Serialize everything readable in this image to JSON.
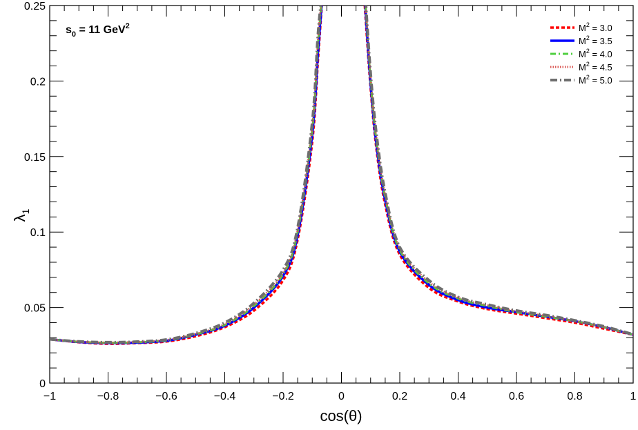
{
  "chart_data": {
    "type": "line",
    "xlabel": "cos(θ)",
    "ylabel_main": "λ",
    "ylabel_sub": "1",
    "xlim": [
      -1,
      1
    ],
    "ylim": [
      0,
      0.25
    ],
    "x_ticks": [
      -1,
      -0.8,
      -0.6,
      -0.4,
      -0.2,
      0,
      0.2,
      0.4,
      0.6,
      0.8,
      1
    ],
    "x_tick_labels": [
      "−1",
      "−0.8",
      "−0.6",
      "−0.4",
      "−0.2",
      "0",
      "0.2",
      "0.4",
      "0.6",
      "0.8",
      "1"
    ],
    "y_ticks": [
      0,
      0.05,
      0.1,
      0.15,
      0.2,
      0.25
    ],
    "y_tick_labels": [
      "0",
      "0.05",
      "0.1",
      "0.15",
      "0.2",
      "0.25"
    ],
    "annotation": {
      "main": "s",
      "sub": "0",
      "text": " = 11 GeV",
      "sup": "2"
    },
    "legend_position": "top-right",
    "x": [
      -1.0,
      -0.9,
      -0.8,
      -0.7,
      -0.6,
      -0.5,
      -0.4,
      -0.3,
      -0.2,
      -0.15,
      -0.1,
      -0.08,
      -0.06,
      0.08,
      0.1,
      0.12,
      0.15,
      0.2,
      0.3,
      0.4,
      0.5,
      0.6,
      0.7,
      0.8,
      0.9,
      1.0
    ],
    "series": [
      {
        "name": "M² = 3.0",
        "label_main": "M",
        "label_sup": "2",
        "label_rest": " = 3.0",
        "color": "#ff0000",
        "dash": "5,3",
        "width": 3.5,
        "y": [
          0.029,
          0.027,
          0.026,
          0.0265,
          0.0275,
          0.031,
          0.037,
          0.048,
          0.068,
          0.095,
          0.16,
          0.215,
          0.27,
          0.25,
          0.195,
          0.155,
          0.118,
          0.085,
          0.063,
          0.054,
          0.049,
          0.046,
          0.043,
          0.04,
          0.036,
          0.032
        ]
      },
      {
        "name": "M² = 3.5",
        "label_main": "M",
        "label_sup": "2",
        "label_rest": " = 3.5",
        "color": "#0000ff",
        "dash": "",
        "width": 3.5,
        "y": [
          0.029,
          0.0272,
          0.0265,
          0.0268,
          0.028,
          0.032,
          0.038,
          0.05,
          0.071,
          0.098,
          0.165,
          0.22,
          0.27,
          0.255,
          0.198,
          0.158,
          0.121,
          0.087,
          0.065,
          0.055,
          0.05,
          0.047,
          0.044,
          0.041,
          0.037,
          0.032
        ]
      },
      {
        "name": "M² = 4.0",
        "label_main": "M",
        "label_sup": "2",
        "label_rest": " = 4.0",
        "color": "#4fcf3f",
        "dash": "8,4,2,4",
        "width": 3,
        "y": [
          0.029,
          0.0273,
          0.0267,
          0.027,
          0.0283,
          0.0322,
          0.0385,
          0.051,
          0.072,
          0.1,
          0.168,
          0.225,
          0.27,
          0.258,
          0.2,
          0.16,
          0.123,
          0.088,
          0.066,
          0.056,
          0.051,
          0.047,
          0.044,
          0.041,
          0.037,
          0.032
        ]
      },
      {
        "name": "M² = 4.5",
        "label_main": "M",
        "label_sup": "2",
        "label_rest": " = 4.5",
        "color": "#d9534f",
        "dash": "1.5,2",
        "width": 3,
        "y": [
          0.029,
          0.0274,
          0.0268,
          0.0272,
          0.0285,
          0.0325,
          0.039,
          0.052,
          0.073,
          0.101,
          0.17,
          0.228,
          0.27,
          0.26,
          0.202,
          0.162,
          0.124,
          0.089,
          0.067,
          0.0565,
          0.0515,
          0.0475,
          0.0445,
          0.041,
          0.037,
          0.032
        ]
      },
      {
        "name": "M² = 5.0",
        "label_main": "M",
        "label_sup": "2",
        "label_rest": " = 5.0",
        "color": "#6e6e6e",
        "dash": "10,4,2,4",
        "width": 4,
        "y": [
          0.029,
          0.0275,
          0.027,
          0.0274,
          0.0288,
          0.033,
          0.04,
          0.053,
          0.075,
          0.103,
          0.173,
          0.232,
          0.27,
          0.262,
          0.205,
          0.165,
          0.126,
          0.09,
          0.068,
          0.057,
          0.052,
          0.048,
          0.045,
          0.0415,
          0.0375,
          0.0322
        ]
      }
    ]
  }
}
